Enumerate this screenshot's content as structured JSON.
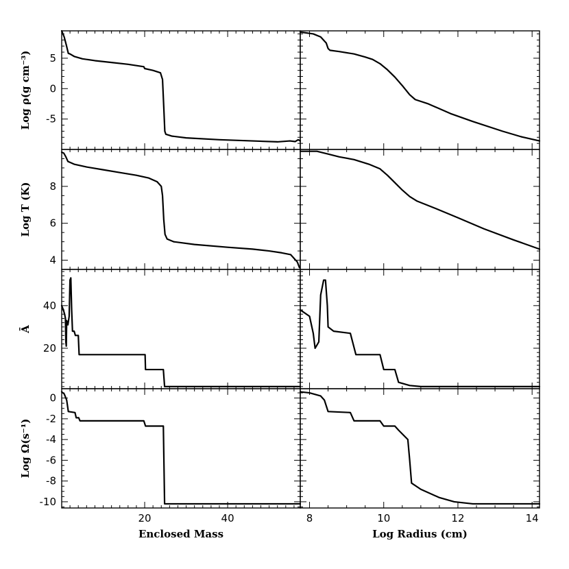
{
  "chart_data": {
    "type": "line",
    "layout": "4 rows x 2 columns, shared y-axes per row",
    "columns": [
      {
        "id": "mass",
        "xlabel": "Enclosed Mass",
        "xlim": [
          0,
          57.5
        ],
        "xticks": [
          20,
          40
        ]
      },
      {
        "id": "radius",
        "xlabel": "Log Radius (cm)",
        "xlim": [
          7.75,
          14.2
        ],
        "xticks": [
          8,
          10,
          12,
          14
        ]
      }
    ],
    "rows": [
      {
        "id": "density",
        "ylabel": "Log ρ(g cm⁻³)",
        "ylim": [
          -10,
          9.5
        ],
        "yticks": [
          5,
          0,
          -5
        ],
        "series": {
          "mass": [
            [
              0,
              9.5
            ],
            [
              0.6,
              8.5
            ],
            [
              1.1,
              7.2
            ],
            [
              1.6,
              5.8
            ],
            [
              2,
              5.7
            ],
            [
              3,
              5.3
            ],
            [
              5,
              4.9
            ],
            [
              8,
              4.6
            ],
            [
              12,
              4.3
            ],
            [
              16,
              4.0
            ],
            [
              19.8,
              3.6
            ],
            [
              20,
              3.3
            ],
            [
              22,
              3.0
            ],
            [
              23.8,
              2.6
            ],
            [
              24.3,
              1.5
            ],
            [
              24.6,
              -3
            ],
            [
              24.85,
              -7
            ],
            [
              25.1,
              -7.5
            ],
            [
              26.5,
              -7.8
            ],
            [
              30,
              -8.1
            ],
            [
              38,
              -8.4
            ],
            [
              46,
              -8.6
            ],
            [
              52,
              -8.75
            ],
            [
              55,
              -8.6
            ],
            [
              56.3,
              -8.7
            ],
            [
              57,
              -8.4
            ],
            [
              57.5,
              -8.6
            ]
          ],
          "radius": [
            [
              7.75,
              9.3
            ],
            [
              8.1,
              9.0
            ],
            [
              8.3,
              8.5
            ],
            [
              8.45,
              7.5
            ],
            [
              8.5,
              6.6
            ],
            [
              8.55,
              6.3
            ],
            [
              8.8,
              6.1
            ],
            [
              9.2,
              5.7
            ],
            [
              9.5,
              5.2
            ],
            [
              9.7,
              4.8
            ],
            [
              9.9,
              4.1
            ],
            [
              10.1,
              3.1
            ],
            [
              10.3,
              1.9
            ],
            [
              10.5,
              0.5
            ],
            [
              10.7,
              -1.0
            ],
            [
              10.85,
              -1.8
            ],
            [
              11.2,
              -2.5
            ],
            [
              11.8,
              -4.1
            ],
            [
              12.4,
              -5.4
            ],
            [
              13.2,
              -7.0
            ],
            [
              13.7,
              -7.9
            ],
            [
              14.2,
              -8.6
            ]
          ]
        }
      },
      {
        "id": "temperature",
        "ylabel": "Log T (K)",
        "ylim": [
          3.5,
          10
        ],
        "yticks": [
          8,
          6,
          4
        ],
        "series": {
          "mass": [
            [
              0,
              9.85
            ],
            [
              0.5,
              9.8
            ],
            [
              1,
              9.6
            ],
            [
              1.5,
              9.35
            ],
            [
              3,
              9.2
            ],
            [
              6,
              9.05
            ],
            [
              10,
              8.9
            ],
            [
              14,
              8.75
            ],
            [
              18,
              8.6
            ],
            [
              21,
              8.45
            ],
            [
              23,
              8.25
            ],
            [
              24,
              8.0
            ],
            [
              24.3,
              7.5
            ],
            [
              24.6,
              6.2
            ],
            [
              24.9,
              5.4
            ],
            [
              25.4,
              5.15
            ],
            [
              27,
              5.0
            ],
            [
              32,
              4.85
            ],
            [
              40,
              4.7
            ],
            [
              46,
              4.6
            ],
            [
              50,
              4.5
            ],
            [
              53,
              4.4
            ],
            [
              55.2,
              4.3
            ],
            [
              56,
              4.1
            ],
            [
              56.8,
              3.9
            ],
            [
              57.3,
              3.6
            ]
          ],
          "radius": [
            [
              7.75,
              9.9
            ],
            [
              8.2,
              9.9
            ],
            [
              8.5,
              9.75
            ],
            [
              8.8,
              9.6
            ],
            [
              9.2,
              9.45
            ],
            [
              9.6,
              9.2
            ],
            [
              9.9,
              8.95
            ],
            [
              10.1,
              8.6
            ],
            [
              10.3,
              8.2
            ],
            [
              10.5,
              7.8
            ],
            [
              10.7,
              7.45
            ],
            [
              10.9,
              7.2
            ],
            [
              11.4,
              6.8
            ],
            [
              12,
              6.3
            ],
            [
              12.7,
              5.7
            ],
            [
              13.5,
              5.1
            ],
            [
              14.2,
              4.6
            ]
          ]
        }
      },
      {
        "id": "mean_mass_number",
        "ylabel": "Ā",
        "ylim": [
          1,
          57
        ],
        "yticks": [
          40,
          20
        ],
        "series": {
          "mass": [
            [
              0,
              40
            ],
            [
              0.4,
              38
            ],
            [
              0.7,
              36
            ],
            [
              0.9,
              34
            ],
            [
              1.0,
              23
            ],
            [
              1.1,
              21
            ],
            [
              1.2,
              33
            ],
            [
              1.5,
              31
            ],
            [
              1.8,
              35
            ],
            [
              2.0,
              52
            ],
            [
              2.2,
              53
            ],
            [
              2.4,
              38
            ],
            [
              2.6,
              28
            ],
            [
              3.0,
              28
            ],
            [
              3.3,
              26
            ],
            [
              4.0,
              26
            ],
            [
              4.2,
              17
            ],
            [
              10,
              17
            ],
            [
              19.8,
              17
            ],
            [
              20.1,
              17
            ],
            [
              20.2,
              10
            ],
            [
              24.5,
              10
            ],
            [
              24.8,
              2
            ],
            [
              57.5,
              2
            ]
          ],
          "radius": [
            [
              7.75,
              38
            ],
            [
              8.0,
              35
            ],
            [
              8.1,
              27
            ],
            [
              8.15,
              20
            ],
            [
              8.25,
              23
            ],
            [
              8.3,
              45
            ],
            [
              8.38,
              52
            ],
            [
              8.43,
              52
            ],
            [
              8.48,
              40
            ],
            [
              8.5,
              30
            ],
            [
              8.65,
              28
            ],
            [
              9.1,
              27
            ],
            [
              9.25,
              17
            ],
            [
              9.9,
              17
            ],
            [
              10.0,
              10
            ],
            [
              10.3,
              10
            ],
            [
              10.4,
              4
            ],
            [
              10.7,
              2.5
            ],
            [
              11.0,
              2
            ],
            [
              14.2,
              2
            ]
          ]
        }
      },
      {
        "id": "angular_velocity",
        "ylabel": "Log Ω(s⁻¹)",
        "ylim": [
          -10.6,
          0.9
        ],
        "yticks": [
          0,
          -2,
          -4,
          -6,
          -8,
          -10
        ],
        "series": {
          "mass": [
            [
              0,
              0.6
            ],
            [
              0.6,
              0.4
            ],
            [
              1.2,
              -0.2
            ],
            [
              1.6,
              -1.3
            ],
            [
              3.2,
              -1.4
            ],
            [
              3.5,
              -1.9
            ],
            [
              4.1,
              -1.9
            ],
            [
              4.4,
              -2.2
            ],
            [
              8,
              -2.2
            ],
            [
              19.8,
              -2.2
            ],
            [
              20.2,
              -2.7
            ],
            [
              24.5,
              -2.7
            ],
            [
              24.8,
              -10.2
            ],
            [
              57.5,
              -10.2
            ]
          ],
          "radius": [
            [
              7.75,
              0.6
            ],
            [
              8.0,
              0.5
            ],
            [
              8.3,
              0.2
            ],
            [
              8.4,
              -0.2
            ],
            [
              8.5,
              -1.3
            ],
            [
              9.1,
              -1.4
            ],
            [
              9.2,
              -2.2
            ],
            [
              9.9,
              -2.2
            ],
            [
              10.0,
              -2.7
            ],
            [
              10.3,
              -2.7
            ],
            [
              10.4,
              -3.1
            ],
            [
              10.65,
              -4.0
            ],
            [
              10.7,
              -6.0
            ],
            [
              10.75,
              -8.2
            ],
            [
              11.0,
              -8.8
            ],
            [
              11.5,
              -9.6
            ],
            [
              11.9,
              -10.0
            ],
            [
              12.4,
              -10.2
            ],
            [
              14.2,
              -10.2
            ]
          ]
        }
      }
    ]
  }
}
